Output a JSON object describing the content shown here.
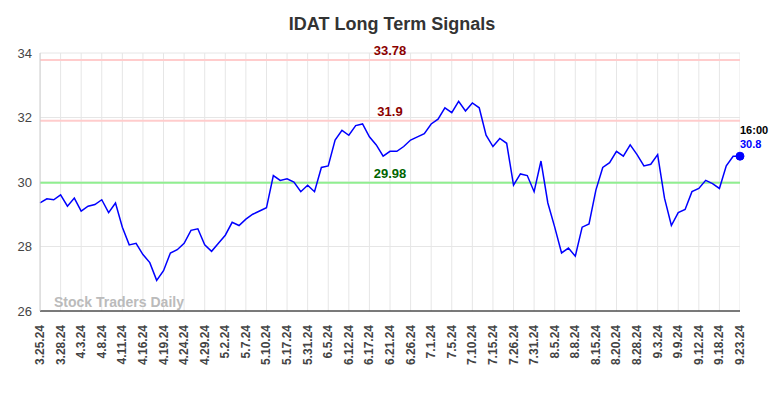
{
  "chart_data": {
    "type": "line",
    "title": "IDAT Long Term Signals",
    "watermark": "Stock Traders Daily",
    "categories": [
      "3.25.24",
      null,
      null,
      "3.28.24",
      null,
      null,
      "4.3.24",
      null,
      null,
      "4.8.24",
      null,
      null,
      "4.11.24",
      null,
      null,
      "4.16.24",
      null,
      null,
      "4.19.24",
      null,
      null,
      "4.24.24",
      null,
      null,
      "4.29.24",
      null,
      null,
      "5.2.24",
      null,
      null,
      "5.7.24",
      null,
      null,
      "5.10.24",
      null,
      null,
      "5.17.24",
      null,
      null,
      "5.31.24",
      null,
      null,
      "6.5.24",
      null,
      null,
      "6.12.24",
      null,
      null,
      "6.17.24",
      null,
      null,
      "6.21.24",
      null,
      null,
      "6.26.24",
      null,
      null,
      "7.1.24",
      null,
      null,
      "7.5.24",
      null,
      null,
      "7.10.24",
      null,
      null,
      "7.15.24",
      null,
      null,
      "7.26.24",
      null,
      null,
      "7.31.24",
      null,
      null,
      "8.5.24",
      null,
      null,
      "8.8.24",
      null,
      null,
      "8.15.24",
      null,
      null,
      "8.20.24",
      null,
      null,
      "8.28.24",
      null,
      null,
      "9.3.24",
      null,
      null,
      "9.9.24",
      null,
      null,
      "9.12.24",
      null,
      null,
      "9.18.24",
      null,
      null,
      "9.23.24"
    ],
    "values": [
      29.35,
      29.48,
      29.45,
      29.6,
      29.25,
      29.5,
      29.1,
      29.25,
      29.3,
      29.45,
      29.05,
      29.35,
      28.6,
      28.05,
      28.1,
      27.75,
      27.5,
      26.95,
      27.25,
      27.8,
      27.9,
      28.1,
      28.5,
      28.55,
      28.05,
      27.85,
      28.1,
      28.35,
      28.75,
      28.65,
      28.85,
      29.0,
      29.1,
      29.2,
      30.2,
      30.05,
      30.1,
      30.0,
      29.7,
      29.9,
      29.7,
      30.45,
      30.5,
      31.3,
      31.6,
      31.45,
      31.75,
      31.8,
      31.4,
      31.15,
      30.8,
      30.95,
      30.95,
      31.1,
      31.3,
      31.4,
      31.5,
      31.8,
      31.95,
      32.3,
      32.15,
      32.5,
      32.2,
      32.45,
      32.3,
      31.45,
      31.1,
      31.35,
      31.2,
      29.9,
      30.25,
      30.2,
      29.7,
      30.65,
      29.35,
      28.6,
      27.8,
      27.95,
      27.7,
      28.6,
      28.7,
      29.75,
      30.45,
      30.6,
      30.95,
      30.8,
      31.15,
      30.85,
      30.5,
      30.55,
      30.85,
      29.5,
      28.65,
      29.05,
      29.15,
      29.7,
      29.8,
      30.05,
      29.95,
      29.8,
      30.5,
      30.8,
      30.8
    ],
    "color": "#0000ff",
    "ylim": [
      26,
      34
    ],
    "yticks": [
      26,
      28,
      30,
      32,
      34
    ],
    "grid": true,
    "reference_lines": [
      {
        "value": 33.78,
        "label": "33.78",
        "color": "#ffcccc",
        "label_color": "#8b0000"
      },
      {
        "value": 31.9,
        "label": "31.9",
        "color": "#ffcccc",
        "label_color": "#8b0000"
      },
      {
        "value": 29.98,
        "label": "29.98",
        "color": "#90ee90",
        "label_color": "#006400"
      }
    ],
    "end_label": {
      "time": "16:00",
      "value": 30.8
    }
  }
}
